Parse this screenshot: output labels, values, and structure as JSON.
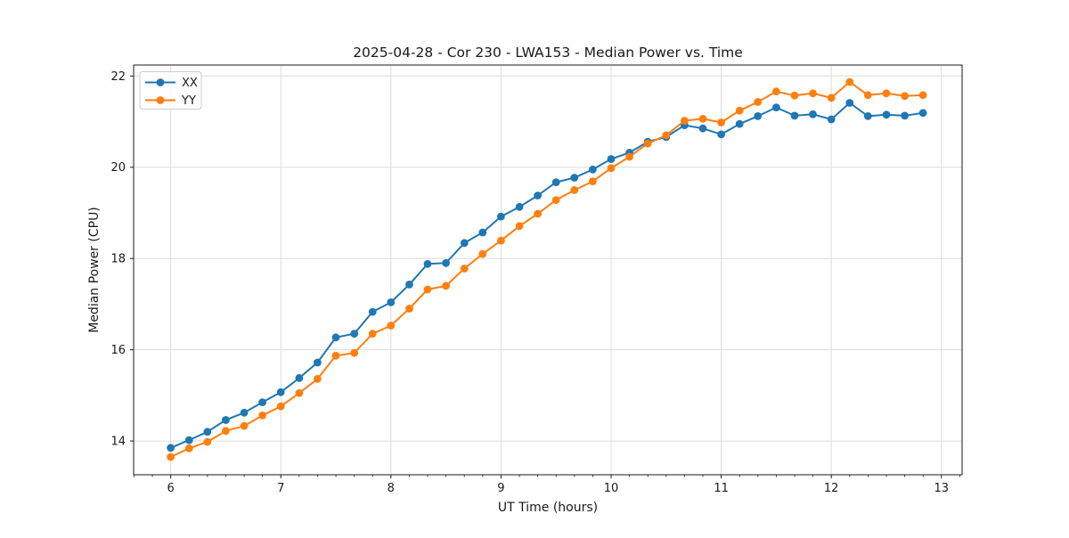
{
  "figure": {
    "background": "#ffffff"
  },
  "chart_data": {
    "type": "line",
    "title": "2025-04-28 - Cor 230 - LWA153 - Median Power vs. Time",
    "xlabel": "UT Time (hours)",
    "ylabel": "Median Power (CPU)",
    "xlim": [
      5.663,
      13.188
    ],
    "ylim": [
      13.26,
      22.24
    ],
    "xticks": [
      6,
      7,
      8,
      9,
      10,
      11,
      12,
      13
    ],
    "yticks": [
      14,
      16,
      18,
      20,
      22
    ],
    "x_minor_step_hours": 0.16667,
    "grid": true,
    "legend_position": "upper left",
    "marker": "circle",
    "x": [
      6.0,
      6.167,
      6.333,
      6.5,
      6.667,
      6.833,
      7.0,
      7.167,
      7.333,
      7.5,
      7.667,
      7.833,
      8.0,
      8.167,
      8.333,
      8.5,
      8.667,
      8.833,
      9.0,
      9.167,
      9.333,
      9.5,
      9.667,
      9.833,
      10.0,
      10.167,
      10.333,
      10.5,
      10.667,
      10.833,
      11.0,
      11.167,
      11.333,
      11.5,
      11.667,
      11.833,
      12.0,
      12.167,
      12.333,
      12.5,
      12.667,
      12.833
    ],
    "series": [
      {
        "name": "XX",
        "color": "#1f77b4",
        "values": [
          13.85,
          14.02,
          14.2,
          14.46,
          14.62,
          14.85,
          15.07,
          15.38,
          15.72,
          16.27,
          16.35,
          16.83,
          17.04,
          17.43,
          17.88,
          17.9,
          18.34,
          18.57,
          18.92,
          19.13,
          19.38,
          19.67,
          19.77,
          19.95,
          20.18,
          20.32,
          20.56,
          20.66,
          20.92,
          20.85,
          20.72,
          20.95,
          21.12,
          21.31,
          21.13,
          21.16,
          21.05,
          21.41,
          21.12,
          21.15,
          21.13,
          21.19
        ]
      },
      {
        "name": "YY",
        "color": "#ff7f0e",
        "values": [
          13.65,
          13.84,
          13.98,
          14.22,
          14.33,
          14.56,
          14.76,
          15.05,
          15.36,
          15.87,
          15.93,
          16.35,
          16.53,
          16.9,
          17.32,
          17.4,
          17.78,
          18.1,
          18.39,
          18.71,
          18.98,
          19.28,
          19.5,
          19.69,
          19.98,
          20.23,
          20.52,
          20.7,
          21.02,
          21.06,
          20.98,
          21.24,
          21.43,
          21.66,
          21.57,
          21.62,
          21.52,
          21.87,
          21.58,
          21.62,
          21.56,
          21.58
        ]
      }
    ]
  },
  "colors": {
    "grid": "#dcdcdc",
    "spine": "#1a1a1a",
    "text": "#1a1a1a",
    "legend_border": "#cccccc",
    "series_xx": "#1f77b4",
    "series_yy": "#ff7f0e"
  }
}
